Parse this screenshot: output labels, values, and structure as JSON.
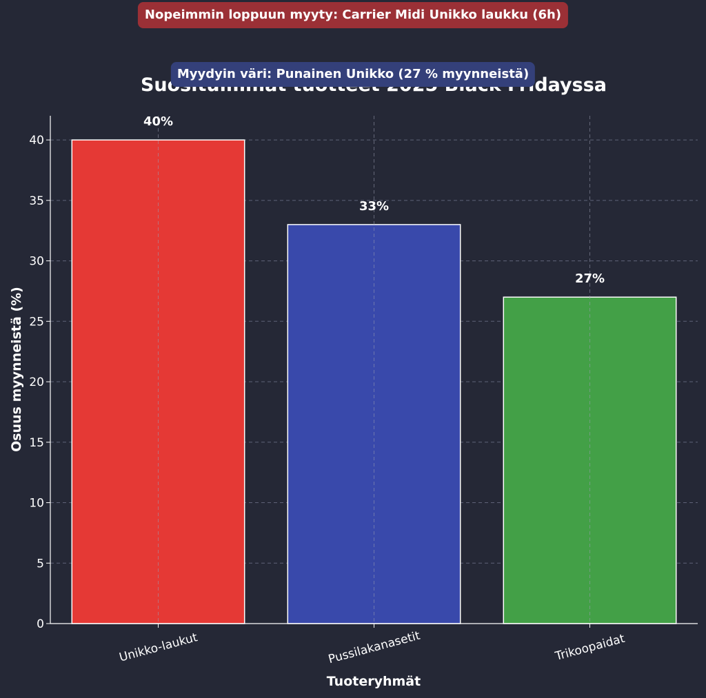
{
  "annotations": {
    "fastest_sold_out": {
      "text": "Nopeimmin loppuun myyty: Carrier Midi Unikko laukku (6h)",
      "bg": "#9b3036"
    },
    "most_sold_color": {
      "text": "Myydyin väri: Punainen Unikko (27 % myynneistä)",
      "bg": "#34407a"
    }
  },
  "chart_data": {
    "type": "bar",
    "title": "Suosituimmat tuotteet 2025 Black Fridayssa",
    "xlabel": "Tuoteryhmät",
    "ylabel": "Osuus myynneistä (%)",
    "categories": [
      "Unikko-laukut",
      "Pussilakanasetit",
      "Trikoopaidat"
    ],
    "values": [
      40,
      33,
      27
    ],
    "value_labels": [
      "40%",
      "33%",
      "27%"
    ],
    "colors": [
      "#e53935",
      "#3949ab",
      "#43a047"
    ],
    "ylim": [
      0,
      42
    ],
    "yticks": [
      0,
      5,
      10,
      15,
      20,
      25,
      30,
      35,
      40
    ],
    "grid": true,
    "background": "#252836"
  }
}
